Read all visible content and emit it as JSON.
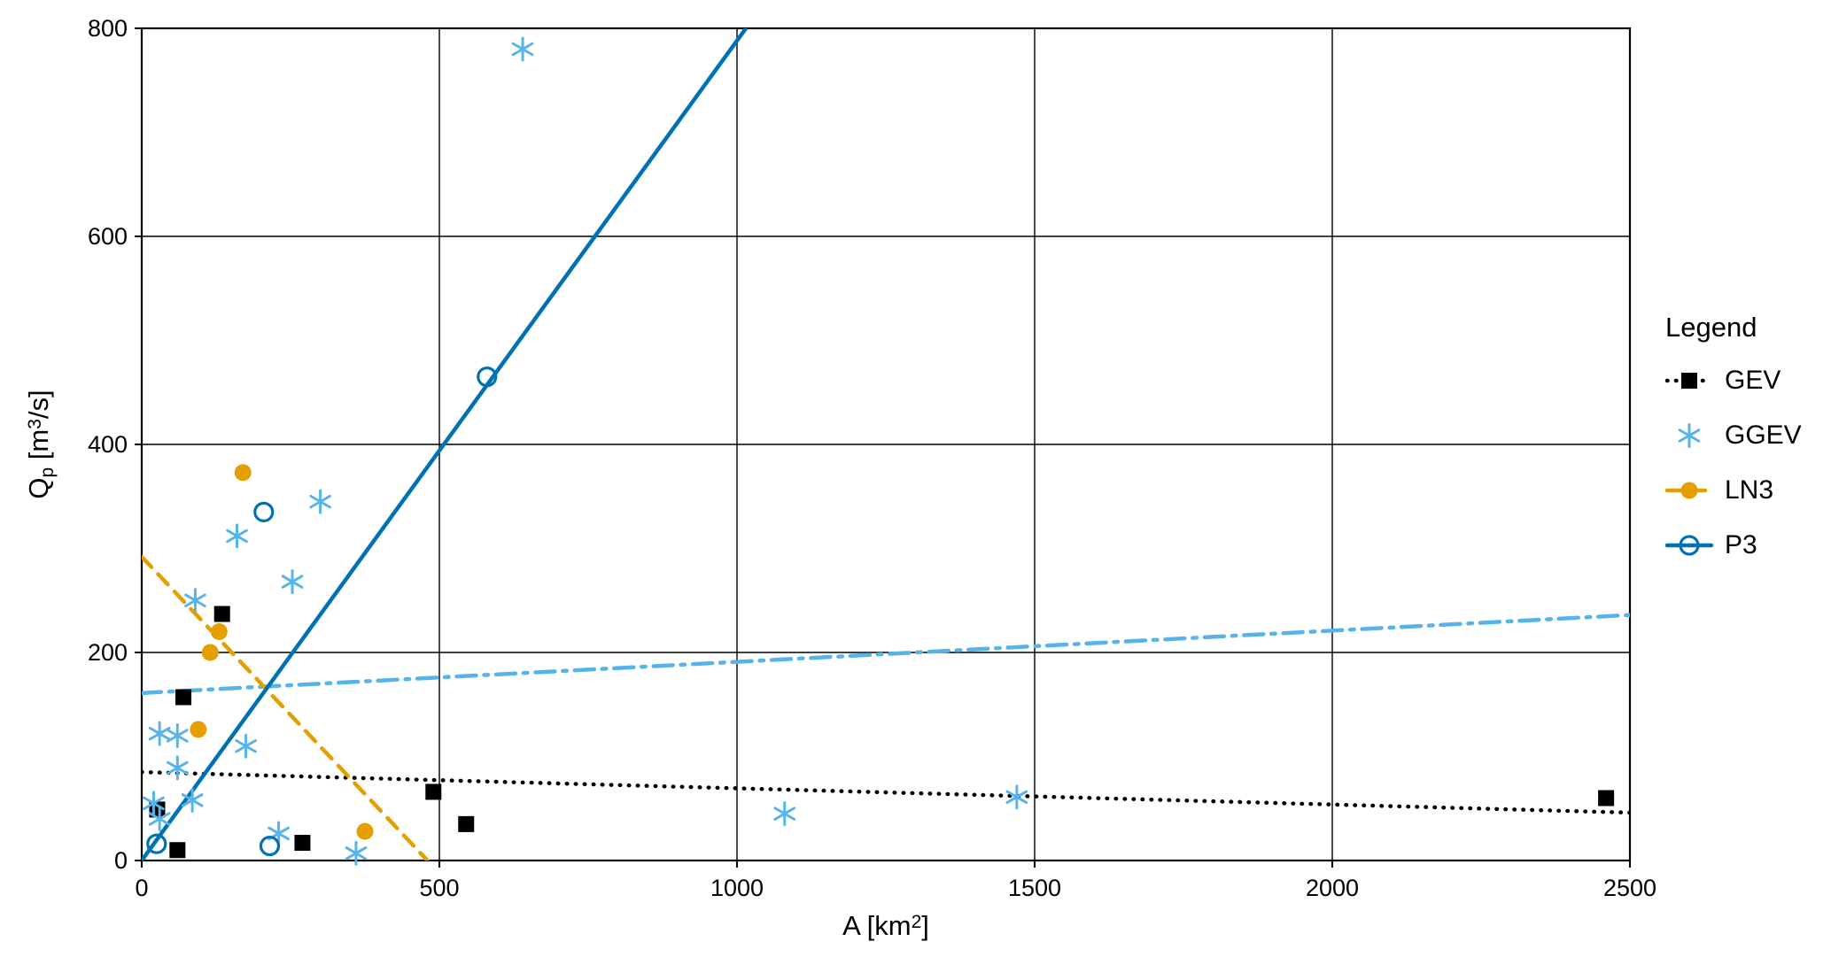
{
  "chart_data": {
    "type": "scatter",
    "title": "",
    "xlabel": {
      "pre": "A [km",
      "sup": "2",
      "post": "]"
    },
    "ylabel": {
      "pre": "Q",
      "sub": "p",
      "mid": " [m",
      "sup": "3",
      "post": "/s]"
    },
    "xlim": [
      0,
      2500
    ],
    "ylim": [
      0,
      800
    ],
    "xticks": [
      0,
      500,
      1000,
      1500,
      2000,
      2500
    ],
    "yticks": [
      0,
      200,
      400,
      600,
      800
    ],
    "grid": "on",
    "legend": {
      "title": "Legend",
      "position": "right"
    },
    "series": [
      {
        "name": "GEV",
        "color": "#000000",
        "marker": "square",
        "line_style": "dotted",
        "points": [
          [
            26,
            49
          ],
          [
            60,
            10
          ],
          [
            70,
            157
          ],
          [
            135,
            237
          ],
          [
            270,
            17
          ],
          [
            490,
            66
          ],
          [
            545,
            35
          ],
          [
            2460,
            60
          ]
        ],
        "trend_line": [
          [
            0,
            85
          ],
          [
            2500,
            46
          ]
        ]
      },
      {
        "name": "GGEV",
        "color": "#56B4E9",
        "marker": "asterisk",
        "line_style": "dashdot",
        "points": [
          [
            20,
            55
          ],
          [
            30,
            40
          ],
          [
            30,
            122
          ],
          [
            60,
            120
          ],
          [
            60,
            89
          ],
          [
            85,
            58
          ],
          [
            90,
            250
          ],
          [
            160,
            312
          ],
          [
            175,
            110
          ],
          [
            230,
            26
          ],
          [
            253,
            268
          ],
          [
            300,
            345
          ],
          [
            360,
            7
          ],
          [
            640,
            780
          ],
          [
            1080,
            45
          ],
          [
            1470,
            61
          ]
        ],
        "trend_line": [
          [
            0,
            161
          ],
          [
            2500,
            236
          ]
        ]
      },
      {
        "name": "LN3",
        "color": "#E69F00",
        "marker": "circle",
        "line_style": "dashed",
        "points": [
          [
            95,
            126
          ],
          [
            115,
            200
          ],
          [
            130,
            220
          ],
          [
            170,
            373
          ],
          [
            375,
            28
          ]
        ],
        "trend_line": [
          [
            0,
            292
          ],
          [
            480,
            0
          ]
        ]
      },
      {
        "name": "P3",
        "color": "#0072B2",
        "marker": "open-circle",
        "line_style": "solid",
        "points": [
          [
            25,
            16
          ],
          [
            205,
            335
          ],
          [
            215,
            14
          ],
          [
            580,
            465
          ]
        ],
        "trend_line": [
          [
            0,
            0
          ],
          [
            1015,
            800
          ]
        ]
      }
    ]
  }
}
